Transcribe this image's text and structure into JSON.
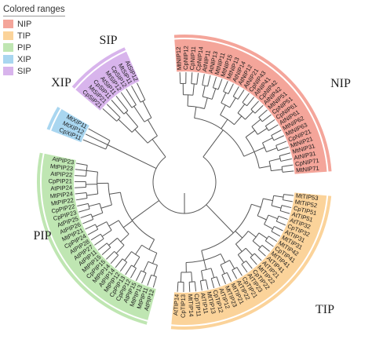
{
  "legend": {
    "title": "Colored ranges",
    "items": [
      {
        "label": "NIP",
        "color": "#f4a59a"
      },
      {
        "label": "TIP",
        "color": "#fbd39a"
      },
      {
        "label": "PIP",
        "color": "#bfe6b2"
      },
      {
        "label": "XIP",
        "color": "#a9d6f0"
      },
      {
        "label": "SIP",
        "color": "#d8b4ec"
      }
    ]
  },
  "clade_labels": [
    "NIP",
    "TIP",
    "PIP",
    "XIP",
    "SIP"
  ],
  "clades": [
    {
      "name": "NIP",
      "color": "#f4a59a",
      "leaves": [
        "MtNIP12",
        "CpNIP12",
        "CpNIP11",
        "CpNIP14",
        "AtNIP11",
        "AtNIP13",
        "MtNIP11",
        "MtNIP15",
        "MtNIP13",
        "AtNIP14",
        "AtNIP12",
        "AtNIP21",
        "CpNIP43",
        "AtNIP41",
        "CpNIP42",
        "AtNIP42",
        "MtNIP51",
        "CpNIP51",
        "CpNIP61",
        "AtNIP61",
        "MtNIP62",
        "MtNIP63",
        "CpNIP21",
        "MtNIP21",
        "MtNIP31",
        "AtNIP31",
        "CpNIP71",
        "MtNIP71"
      ]
    },
    {
      "name": "TIP",
      "color": "#fbd39a",
      "leaves": [
        "MtTIP53",
        "MtTIP52",
        "CpTIP51",
        "AtTIP51",
        "AtTIP32",
        "CpTIP32",
        "AtTIP31",
        "MtTIP31",
        "MtTIP42",
        "CpTIP41",
        "MtTIP41",
        "AtTIP41",
        "AtTIP21",
        "MtTIP22",
        "CpTIP22",
        "AtTIP23",
        "CpTIP21",
        "AtTIP22",
        "MtTIP21",
        "MtTIP23",
        "AtTIP12",
        "CpTIP12",
        "MtTIP13",
        "AtTIP11",
        "CpTIP11",
        "MtTIP14",
        "CpTIP13",
        "AtTIP14"
      ]
    },
    {
      "name": "PIP",
      "color": "#bfe6b2",
      "leaves": [
        "AtPIP12",
        "MtPIP11",
        "MtPIP13",
        "AtPIP15",
        "CpPIP12",
        "CpPIP13",
        "MtPIP12",
        "AtPIP14",
        "MtPIP14",
        "CpPIP15",
        "MtPIP15",
        "AtPIP11",
        "AtPIP27",
        "AtPIP28",
        "CpPIP24",
        "MtPIP21",
        "AtPIP26",
        "AtPIP25",
        "CpPIP23",
        "CpPIP22",
        "MtPIP22",
        "MtPIP24",
        "AtPIP24",
        "CpPIP21",
        "AtPIP22",
        "MtPIP23",
        "AtPIP23"
      ]
    },
    {
      "name": "XIP",
      "color": "#a9d6f0",
      "leaves": [
        "CpXIP11",
        "MtXIP12",
        "MtXIP11"
      ]
    },
    {
      "name": "SIP",
      "color": "#d8b4ec",
      "leaves": [
        "CpSIP21",
        "MtSIP21",
        "CpSIP11",
        "AtSIP11",
        "MtSIP12",
        "CpSIP12",
        "MtSIP11",
        "AtSIP12"
      ]
    }
  ]
}
